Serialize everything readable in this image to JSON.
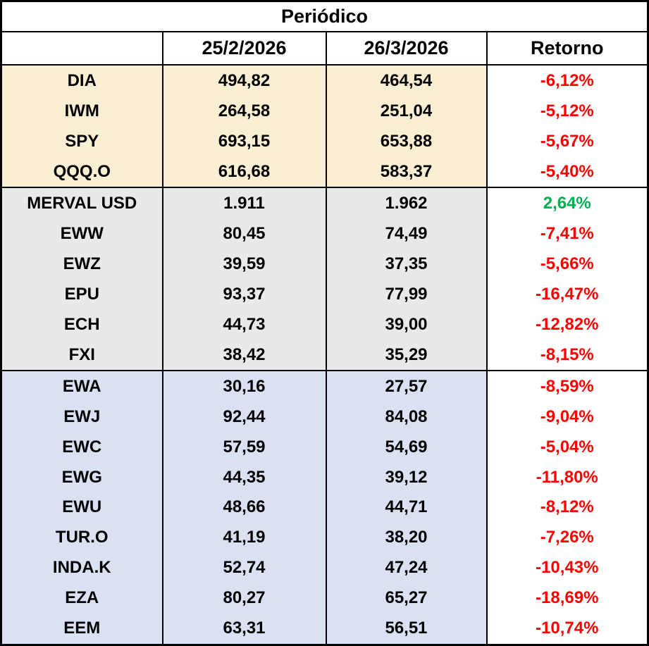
{
  "chart_data": {
    "type": "table",
    "title": "Periódico",
    "columns": [
      "",
      "25/2/2026",
      "26/3/2026",
      "Retorno"
    ],
    "rows": [
      {
        "label": "DIA",
        "d1": "494,82",
        "d2": "464,54",
        "ret": "-6,12%",
        "group": "us-indices",
        "trend": "negative"
      },
      {
        "label": "IWM",
        "d1": "264,58",
        "d2": "251,04",
        "ret": "-5,12%",
        "group": "us-indices",
        "trend": "negative"
      },
      {
        "label": "SPY",
        "d1": "693,15",
        "d2": "653,88",
        "ret": "-5,67%",
        "group": "us-indices",
        "trend": "negative"
      },
      {
        "label": "QQQ.O",
        "d1": "616,68",
        "d2": "583,37",
        "ret": "-5,40%",
        "group": "us-indices",
        "trend": "negative"
      },
      {
        "label": "MERVAL USD",
        "d1": "1.911",
        "d2": "1.962",
        "ret": "2,64%",
        "group": "emerging",
        "trend": "positive"
      },
      {
        "label": "EWW",
        "d1": "80,45",
        "d2": "74,49",
        "ret": "-7,41%",
        "group": "emerging",
        "trend": "negative"
      },
      {
        "label": "EWZ",
        "d1": "39,59",
        "d2": "37,35",
        "ret": "-5,66%",
        "group": "emerging",
        "trend": "negative"
      },
      {
        "label": "EPU",
        "d1": "93,37",
        "d2": "77,99",
        "ret": "-16,47%",
        "group": "emerging",
        "trend": "negative"
      },
      {
        "label": "ECH",
        "d1": "44,73",
        "d2": "39,00",
        "ret": "-12,82%",
        "group": "emerging",
        "trend": "negative"
      },
      {
        "label": "FXI",
        "d1": "38,42",
        "d2": "35,29",
        "ret": "-8,15%",
        "group": "emerging",
        "trend": "negative"
      },
      {
        "label": "EWA",
        "d1": "30,16",
        "d2": "27,57",
        "ret": "-8,59%",
        "group": "international",
        "trend": "negative"
      },
      {
        "label": "EWJ",
        "d1": "92,44",
        "d2": "84,08",
        "ret": "-9,04%",
        "group": "international",
        "trend": "negative"
      },
      {
        "label": "EWC",
        "d1": "57,59",
        "d2": "54,69",
        "ret": "-5,04%",
        "group": "international",
        "trend": "negative"
      },
      {
        "label": "EWG",
        "d1": "44,35",
        "d2": "39,12",
        "ret": "-11,80%",
        "group": "international",
        "trend": "negative"
      },
      {
        "label": "EWU",
        "d1": "48,66",
        "d2": "44,71",
        "ret": "-8,12%",
        "group": "international",
        "trend": "negative"
      },
      {
        "label": "TUR.O",
        "d1": "41,19",
        "d2": "38,20",
        "ret": "-7,26%",
        "group": "international",
        "trend": "negative"
      },
      {
        "label": "INDA.K",
        "d1": "52,74",
        "d2": "47,24",
        "ret": "-10,43%",
        "group": "international",
        "trend": "negative"
      },
      {
        "label": "EZA",
        "d1": "80,27",
        "d2": "65,27",
        "ret": "-18,69%",
        "group": "international",
        "trend": "negative"
      },
      {
        "label": "EEM",
        "d1": "63,31",
        "d2": "56,51",
        "ret": "-10,74%",
        "group": "international",
        "trend": "negative"
      }
    ]
  },
  "colors": {
    "group_us_indices_bg": "#FAEFD2",
    "group_emerging_bg": "#E9E9E9",
    "group_international_bg": "#D9E1F2",
    "return_column_bg": "#FFFFFF",
    "negative_return_text": "#FF0000",
    "positive_return_text": "#00B050",
    "grid_border": "#000000",
    "text": "#000000"
  }
}
